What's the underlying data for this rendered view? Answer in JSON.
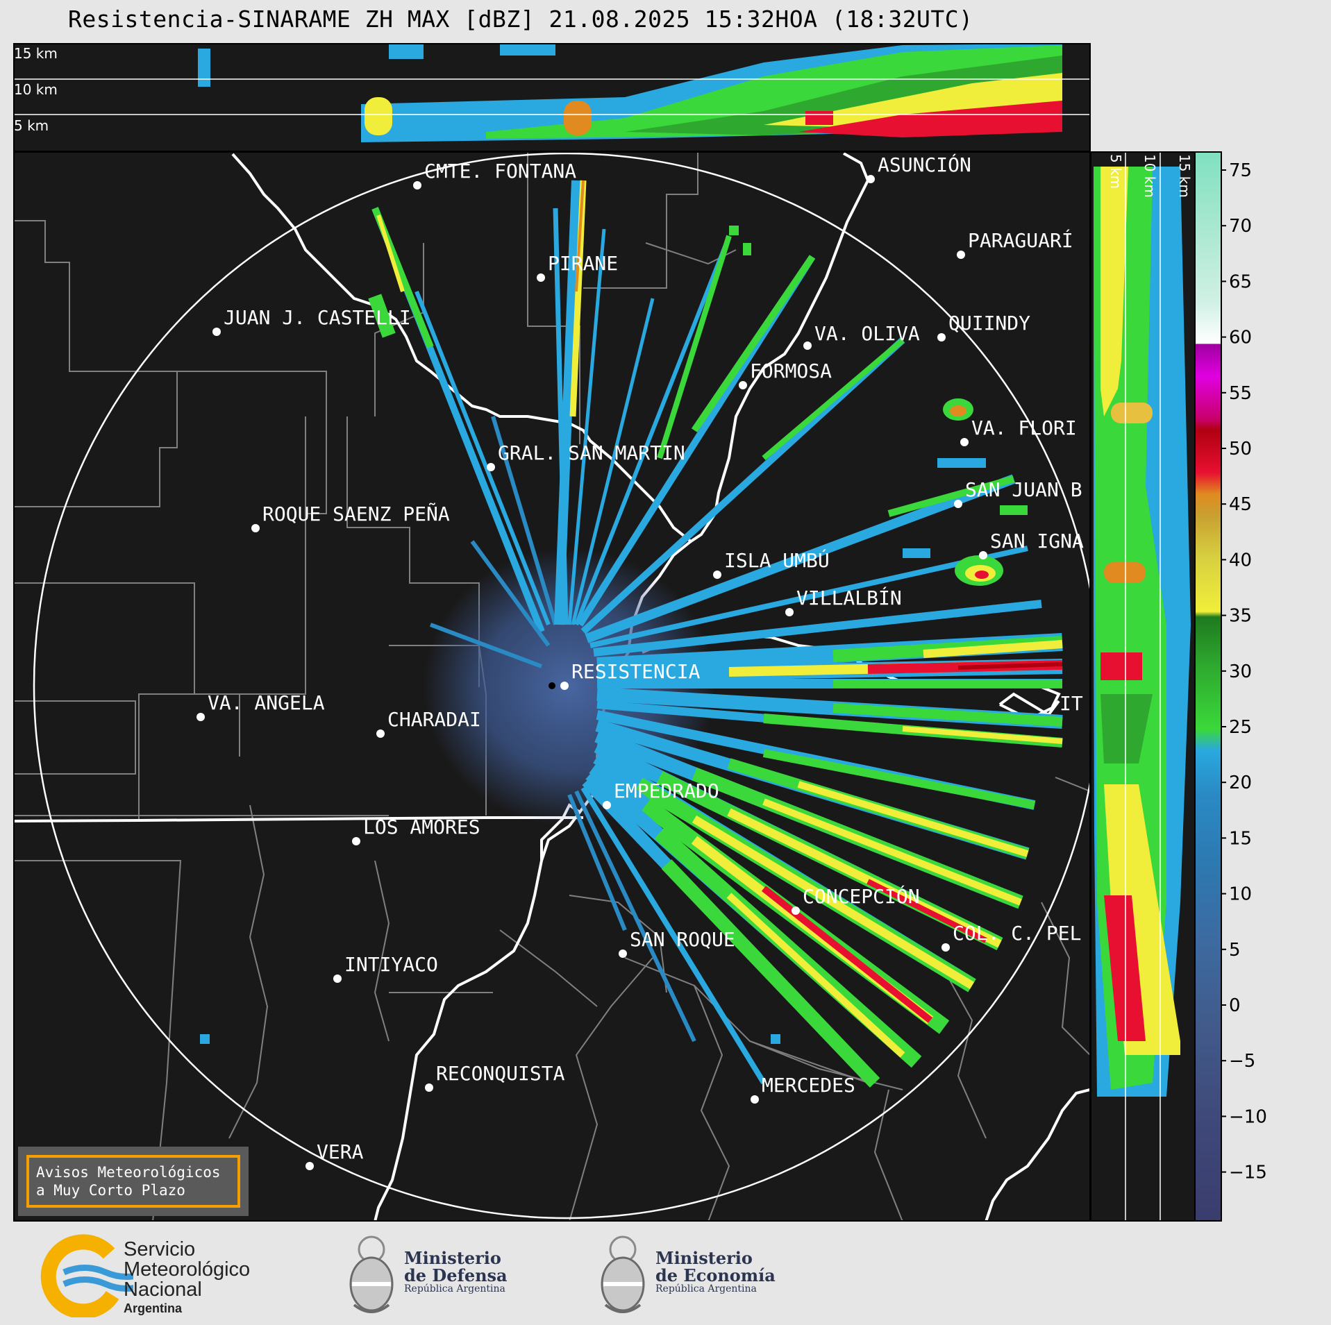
{
  "title": "Resistencia-SINARAME ZH MAX [dBZ] 21.08.2025 15:32HOA (18:32UTC)",
  "top_panel": {
    "height_labels": [
      "15 km",
      "10 km",
      "5 km"
    ]
  },
  "right_panel": {
    "height_labels": [
      "5 km",
      "10 km",
      "15 km"
    ]
  },
  "cities": [
    {
      "name": "CMTE. FONTANA"
    },
    {
      "name": "ASUNCIÓN"
    },
    {
      "name": "PARAGUARÍ"
    },
    {
      "name": "PIRANE"
    },
    {
      "name": "JUAN J. CASTELLI"
    },
    {
      "name": "QUIINDY"
    },
    {
      "name": "VA. OLIVA"
    },
    {
      "name": "FORMOSA"
    },
    {
      "name": "VA. FLORI"
    },
    {
      "name": "GRAL. SAN MARTIN"
    },
    {
      "name": "SAN JUAN B"
    },
    {
      "name": "ROQUE SAENZ PEÑA"
    },
    {
      "name": "SAN IGNA"
    },
    {
      "name": "ISLA UMBÚ"
    },
    {
      "name": "VILLALBÍN"
    },
    {
      "name": "RESISTENCIA"
    },
    {
      "name": "VA. ANGELA"
    },
    {
      "name": "CHARADAI"
    },
    {
      "name": "IT"
    },
    {
      "name": "EMPEDRADO"
    },
    {
      "name": "LOS AMORES"
    },
    {
      "name": "CONCEPCIÓN"
    },
    {
      "name": "SAN ROQUE"
    },
    {
      "name": "COL. C. PEL"
    },
    {
      "name": "INTIYACO"
    },
    {
      "name": "RECONQUISTA"
    },
    {
      "name": "MERCEDES"
    },
    {
      "name": "VERA"
    }
  ],
  "notice": {
    "line1": "Avisos Meteorológicos",
    "line2": "a Muy Corto Plazo"
  },
  "colorbar": {
    "ticks": [
      "75",
      "70",
      "65",
      "60",
      "55",
      "50",
      "45",
      "40",
      "35",
      "30",
      "25",
      "20",
      "15",
      "10",
      "5",
      "0",
      "−5",
      "−10",
      "−15"
    ]
  },
  "logos": {
    "smn": {
      "line1": "Servicio",
      "line2": "Meteorológico",
      "line3": "Nacional",
      "line4": "Argentina"
    },
    "defensa": {
      "line1": "Ministerio",
      "line2": "de Defensa",
      "line3": "República Argentina"
    },
    "economia": {
      "line1": "Ministerio",
      "line2": "de Economía",
      "line3": "República Argentina"
    }
  },
  "colors": {
    "background": "#191919",
    "accent_notice": "#f5a000"
  }
}
